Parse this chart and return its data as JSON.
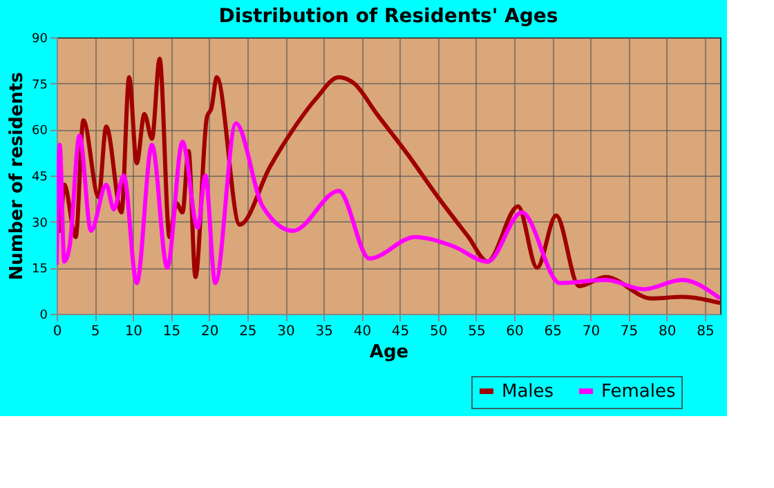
{
  "chart_data": {
    "type": "line",
    "title": "Distribution of Residents' Ages",
    "xlabel": "Age",
    "ylabel": "Number of residents",
    "xlim": [
      0,
      87
    ],
    "xticks": [
      0,
      5,
      10,
      15,
      20,
      25,
      30,
      35,
      40,
      45,
      50,
      55,
      60,
      65,
      70,
      75,
      80,
      85
    ],
    "ylim": [
      0,
      90
    ],
    "yticks": [
      0,
      15,
      30,
      45,
      60,
      75,
      90
    ],
    "grid": true,
    "legend": "bottom right",
    "marker": "none",
    "line_style": "solid",
    "series": [
      {
        "name": "Males",
        "color": "#a00000",
        "x": [
          0,
          0.4,
          1,
          2.5,
          3.5,
          5.5,
          6.5,
          8.5,
          9.5,
          10.5,
          11.5,
          12.5,
          13.5,
          14.8,
          15.7,
          16.5,
          17.3,
          18.2,
          19.7,
          20.3,
          21,
          24,
          28,
          31,
          34,
          37,
          39,
          42,
          46,
          50,
          54,
          56.5,
          60.5,
          63,
          65.5,
          68.5,
          72,
          78,
          82,
          87
        ],
        "values": [
          44,
          27,
          42,
          25,
          63,
          38,
          61,
          33,
          77,
          49,
          65,
          57,
          83,
          25,
          36,
          33,
          53,
          12,
          64,
          67,
          77,
          29,
          48,
          60,
          70,
          77,
          75,
          65,
          52,
          38,
          25,
          17,
          35,
          15,
          32,
          9,
          12,
          5,
          5.5,
          3.5
        ]
      },
      {
        "name": "Females",
        "color": "#ff00ff",
        "x": [
          0,
          0.4,
          1,
          1.7,
          3,
          4.5,
          6.5,
          7.5,
          8.8,
          10.5,
          12.5,
          14.5,
          16.5,
          18.5,
          19.5,
          20.8,
          23.5,
          27,
          31,
          37,
          41,
          47,
          52,
          56.5,
          61,
          66,
          72,
          77,
          82,
          87
        ],
        "values": [
          16,
          55,
          17,
          22,
          58,
          27,
          42,
          34,
          45,
          10,
          55,
          15,
          56,
          28,
          45,
          10,
          62,
          35,
          27,
          40,
          18,
          25,
          22,
          17,
          33,
          10,
          11,
          8,
          11,
          5
        ]
      }
    ]
  }
}
